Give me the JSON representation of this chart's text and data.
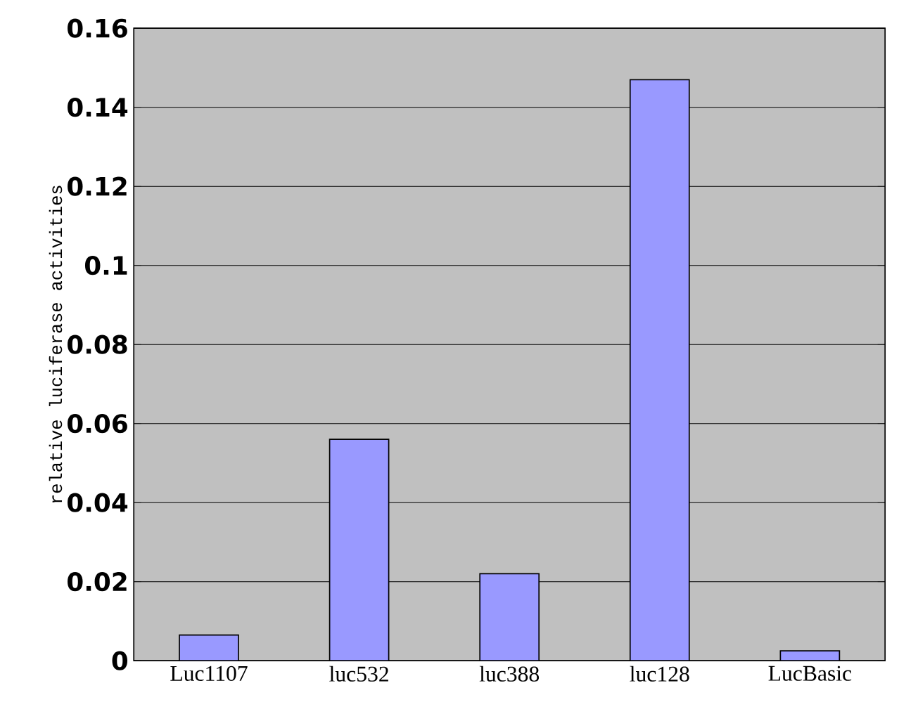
{
  "chart_data": {
    "type": "bar",
    "ylabel": "relative luciferase activities",
    "categories": [
      "Luc1107",
      "luc532",
      "luc388",
      "luc128",
      "LucBasic"
    ],
    "values": [
      0.0065,
      0.056,
      0.022,
      0.147,
      0.0025
    ],
    "color": "#9999ff",
    "ylim": [
      0,
      0.16
    ],
    "yticks": [
      0,
      0.02,
      0.04,
      0.06,
      0.08,
      0.1,
      0.12,
      0.14,
      0.16
    ],
    "grid": "y"
  }
}
